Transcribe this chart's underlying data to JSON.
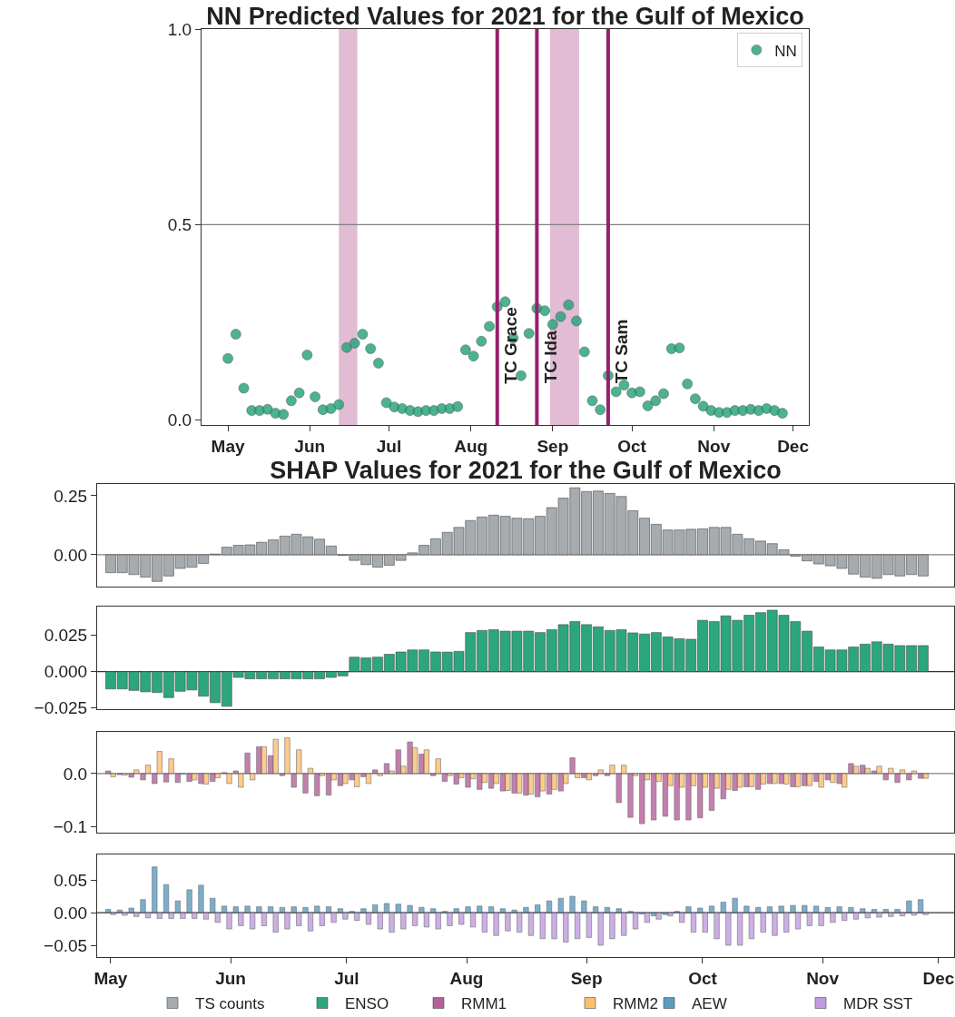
{
  "chart_data": [
    {
      "type": "scatter",
      "title": "NN Predicted Values for 2021 for the Gulf of Mexico",
      "marker": "circle",
      "legend": "top right",
      "x": [
        "2021-05-01",
        "2021-05-04",
        "2021-05-07",
        "2021-05-10",
        "2021-05-13",
        "2021-05-16",
        "2021-05-19",
        "2021-05-22",
        "2021-05-25",
        "2021-05-28",
        "2021-05-31",
        "2021-06-03",
        "2021-06-06",
        "2021-06-09",
        "2021-06-12",
        "2021-06-15",
        "2021-06-18",
        "2021-06-21",
        "2021-06-24",
        "2021-06-27",
        "2021-06-30",
        "2021-07-03",
        "2021-07-06",
        "2021-07-09",
        "2021-07-12",
        "2021-07-15",
        "2021-07-18",
        "2021-07-21",
        "2021-07-24",
        "2021-07-27",
        "2021-07-30",
        "2021-08-02",
        "2021-08-05",
        "2021-08-08",
        "2021-08-11",
        "2021-08-14",
        "2021-08-17",
        "2021-08-20",
        "2021-08-23",
        "2021-08-26",
        "2021-08-29",
        "2021-09-01",
        "2021-09-04",
        "2021-09-07",
        "2021-09-10",
        "2021-09-13",
        "2021-09-16",
        "2021-09-19",
        "2021-09-22",
        "2021-09-25",
        "2021-09-28",
        "2021-10-01",
        "2021-10-04",
        "2021-10-07",
        "2021-10-10",
        "2021-10-13",
        "2021-10-16",
        "2021-10-19",
        "2021-10-22",
        "2021-10-25",
        "2021-10-28",
        "2021-10-31",
        "2021-11-03",
        "2021-11-06",
        "2021-11-09",
        "2021-11-12",
        "2021-11-15",
        "2021-11-18",
        "2021-11-21",
        "2021-11-24",
        "2021-11-27"
      ],
      "series": [
        {
          "name": "NN",
          "color": "#2ca67e",
          "values": [
            0.158,
            0.22,
            0.082,
            0.025,
            0.025,
            0.028,
            0.018,
            0.015,
            0.05,
            0.07,
            0.167,
            0.06,
            0.027,
            0.03,
            0.04,
            0.186,
            0.197,
            0.22,
            0.183,
            0.146,
            0.045,
            0.034,
            0.03,
            0.025,
            0.022,
            0.025,
            0.025,
            0.03,
            0.03,
            0.035,
            0.18,
            0.164,
            0.202,
            0.24,
            0.29,
            0.303,
            0.21,
            0.114,
            0.222,
            0.286,
            0.28,
            0.245,
            0.265,
            0.295,
            0.254,
            0.175,
            0.05,
            0.027,
            0.114,
            0.073,
            0.09,
            0.07,
            0.073,
            0.037,
            0.05,
            0.068,
            0.183,
            0.185,
            0.093,
            0.055,
            0.036,
            0.025,
            0.02,
            0.02,
            0.025,
            0.025,
            0.028,
            0.025,
            0.03,
            0.025,
            0.018
          ]
        }
      ],
      "xlim": [
        "2021-04-21",
        "2021-12-07"
      ],
      "xticks": [
        {
          "value": "2021-05-01",
          "label": "May"
        },
        {
          "value": "2021-06-01",
          "label": "Jun"
        },
        {
          "value": "2021-07-01",
          "label": "Jul"
        },
        {
          "value": "2021-08-01",
          "label": "Aug"
        },
        {
          "value": "2021-09-01",
          "label": "Sep"
        },
        {
          "value": "2021-10-01",
          "label": "Oct"
        },
        {
          "value": "2021-11-01",
          "label": "Nov"
        },
        {
          "value": "2021-12-01",
          "label": "Dec"
        }
      ],
      "ylim": [
        -0.012,
        1
      ],
      "yticks": [
        {
          "value": 0,
          "label": "0.0"
        },
        0.5,
        {
          "value": 1,
          "label": "1.0"
        }
      ],
      "ref_lines": [
        {
          "axis": "y",
          "value": 0.5,
          "color": "#808080"
        },
        {
          "axis": "x",
          "value": "2021-08-11",
          "label": "TC Grace",
          "color": "#98206e"
        },
        {
          "axis": "x",
          "value": "2021-08-26",
          "label": "TC Ida",
          "color": "#98206e"
        },
        {
          "axis": "x",
          "value": "2021-09-22",
          "label": "TC Sam",
          "color": "#98206e"
        }
      ],
      "bands": [
        {
          "axis": "x",
          "from": "2021-06-12",
          "to": "2021-06-19",
          "color": "#dcb0cc"
        },
        {
          "axis": "x",
          "from": "2021-08-31",
          "to": "2021-09-11",
          "color": "#dcb0cc"
        }
      ]
    },
    {
      "type": "bar",
      "title": "SHAP Values for 2021 for the Gulf of Mexico",
      "legend": "bottom",
      "tick_labels": "y",
      "x": [
        "2021-05-01",
        "2021-05-04",
        "2021-05-07",
        "2021-05-10",
        "2021-05-13",
        "2021-05-16",
        "2021-05-19",
        "2021-05-22",
        "2021-05-25",
        "2021-05-28",
        "2021-05-31",
        "2021-06-03",
        "2021-06-06",
        "2021-06-09",
        "2021-06-12",
        "2021-06-15",
        "2021-06-18",
        "2021-06-21",
        "2021-06-24",
        "2021-06-27",
        "2021-06-30",
        "2021-07-03",
        "2021-07-06",
        "2021-07-09",
        "2021-07-12",
        "2021-07-15",
        "2021-07-18",
        "2021-07-21",
        "2021-07-24",
        "2021-07-27",
        "2021-07-30",
        "2021-08-02",
        "2021-08-05",
        "2021-08-08",
        "2021-08-11",
        "2021-08-14",
        "2021-08-17",
        "2021-08-20",
        "2021-08-23",
        "2021-08-26",
        "2021-08-29",
        "2021-09-01",
        "2021-09-04",
        "2021-09-07",
        "2021-09-10",
        "2021-09-13",
        "2021-09-16",
        "2021-09-19",
        "2021-09-22",
        "2021-09-25",
        "2021-09-28",
        "2021-10-01",
        "2021-10-04",
        "2021-10-07",
        "2021-10-10",
        "2021-10-13",
        "2021-10-16",
        "2021-10-19",
        "2021-10-22",
        "2021-10-25",
        "2021-10-28",
        "2021-10-31",
        "2021-11-03",
        "2021-11-06",
        "2021-11-09",
        "2021-11-12",
        "2021-11-15",
        "2021-11-18",
        "2021-11-21",
        "2021-11-24",
        "2021-11-27"
      ],
      "series": [
        {
          "name": "TS counts",
          "color": "#a6abaf",
          "values": [
            -0.076,
            -0.076,
            -0.084,
            -0.095,
            -0.113,
            -0.09,
            -0.058,
            -0.053,
            -0.037,
            0.003,
            0.032,
            0.04,
            0.042,
            0.053,
            0.063,
            0.079,
            0.087,
            0.076,
            0.066,
            0.037,
            -0.003,
            -0.024,
            -0.042,
            -0.053,
            -0.045,
            -0.024,
            0.008,
            0.04,
            0.068,
            0.095,
            0.116,
            0.145,
            0.16,
            0.168,
            0.163,
            0.155,
            0.153,
            0.163,
            0.2,
            0.24,
            0.284,
            0.268,
            0.27,
            0.26,
            0.247,
            0.187,
            0.155,
            0.129,
            0.105,
            0.105,
            0.108,
            0.11,
            0.116,
            0.116,
            0.087,
            0.068,
            0.058,
            0.047,
            0.021,
            -0.006,
            -0.026,
            -0.039,
            -0.047,
            -0.058,
            -0.082,
            -0.095,
            -0.1,
            -0.084,
            -0.09,
            -0.084,
            -0.09
          ]
        }
      ],
      "xlim": [
        "2021-04-27T12:00",
        "2021-12-05"
      ],
      "ylim": [
        -0.135,
        0.3
      ],
      "yticks": [
        {
          "value": 0,
          "label": "0.00"
        },
        0.25
      ],
      "ref_lines": [
        {
          "axis": "y",
          "value": 0,
          "color": "#808080"
        }
      ]
    },
    {
      "type": "bar",
      "legend": "bottom",
      "tick_labels": "y",
      "x": [
        "2021-05-01",
        "2021-05-04",
        "2021-05-07",
        "2021-05-10",
        "2021-05-13",
        "2021-05-16",
        "2021-05-19",
        "2021-05-22",
        "2021-05-25",
        "2021-05-28",
        "2021-05-31",
        "2021-06-03",
        "2021-06-06",
        "2021-06-09",
        "2021-06-12",
        "2021-06-15",
        "2021-06-18",
        "2021-06-21",
        "2021-06-24",
        "2021-06-27",
        "2021-06-30",
        "2021-07-03",
        "2021-07-06",
        "2021-07-09",
        "2021-07-12",
        "2021-07-15",
        "2021-07-18",
        "2021-07-21",
        "2021-07-24",
        "2021-07-27",
        "2021-07-30",
        "2021-08-02",
        "2021-08-05",
        "2021-08-08",
        "2021-08-11",
        "2021-08-14",
        "2021-08-17",
        "2021-08-20",
        "2021-08-23",
        "2021-08-26",
        "2021-08-29",
        "2021-09-01",
        "2021-09-04",
        "2021-09-07",
        "2021-09-10",
        "2021-09-13",
        "2021-09-16",
        "2021-09-19",
        "2021-09-22",
        "2021-09-25",
        "2021-09-28",
        "2021-10-01",
        "2021-10-04",
        "2021-10-07",
        "2021-10-10",
        "2021-10-13",
        "2021-10-16",
        "2021-10-19",
        "2021-10-22",
        "2021-10-25",
        "2021-10-28",
        "2021-10-31",
        "2021-11-03",
        "2021-11-06",
        "2021-11-09",
        "2021-11-12",
        "2021-11-15",
        "2021-11-18",
        "2021-11-21",
        "2021-11-24",
        "2021-11-27"
      ],
      "series": [
        {
          "name": "ENSO",
          "color": "#2ca67e",
          "values": [
            -0.012,
            -0.012,
            -0.013,
            -0.014,
            -0.0145,
            -0.018,
            -0.0136,
            -0.0127,
            -0.017,
            -0.0215,
            -0.024,
            -0.004,
            -0.005,
            -0.005,
            -0.005,
            -0.005,
            -0.005,
            -0.005,
            -0.005,
            -0.004,
            -0.003,
            0.01,
            0.0095,
            0.01,
            0.012,
            0.0136,
            0.015,
            0.015,
            0.0136,
            0.0135,
            0.014,
            0.027,
            0.0285,
            0.029,
            0.028,
            0.028,
            0.028,
            0.027,
            0.029,
            0.0325,
            0.0346,
            0.0325,
            0.031,
            0.0285,
            0.029,
            0.0268,
            0.026,
            0.027,
            0.024,
            0.0228,
            0.0224,
            0.0355,
            0.0346,
            0.0386,
            0.0355,
            0.039,
            0.0408,
            0.0425,
            0.039,
            0.0346,
            0.028,
            0.017,
            0.015,
            0.015,
            0.017,
            0.019,
            0.0206,
            0.019,
            0.018,
            0.018,
            0.018
          ]
        }
      ],
      "xlim": [
        "2021-04-27T12:00",
        "2021-12-05"
      ],
      "ylim": [
        -0.026,
        0.045
      ],
      "yticks": [
        {
          "value": -0.025,
          "label": "−0.025"
        },
        {
          "value": 0,
          "label": "0.000"
        },
        0.025
      ],
      "ref_lines": [
        {
          "axis": "y",
          "value": 0,
          "color": "#333333"
        }
      ]
    },
    {
      "type": "bar",
      "legend": "bottom",
      "tick_labels": "y",
      "x": [
        "2021-05-01",
        "2021-05-04",
        "2021-05-07",
        "2021-05-10",
        "2021-05-13",
        "2021-05-16",
        "2021-05-19",
        "2021-05-22",
        "2021-05-25",
        "2021-05-28",
        "2021-05-31",
        "2021-06-03",
        "2021-06-06",
        "2021-06-09",
        "2021-06-12",
        "2021-06-15",
        "2021-06-18",
        "2021-06-21",
        "2021-06-24",
        "2021-06-27",
        "2021-06-30",
        "2021-07-03",
        "2021-07-06",
        "2021-07-09",
        "2021-07-12",
        "2021-07-15",
        "2021-07-18",
        "2021-07-21",
        "2021-07-24",
        "2021-07-27",
        "2021-07-30",
        "2021-08-02",
        "2021-08-05",
        "2021-08-08",
        "2021-08-11",
        "2021-08-14",
        "2021-08-17",
        "2021-08-20",
        "2021-08-23",
        "2021-08-26",
        "2021-08-29",
        "2021-09-01",
        "2021-09-04",
        "2021-09-07",
        "2021-09-10",
        "2021-09-13",
        "2021-09-16",
        "2021-09-19",
        "2021-09-22",
        "2021-09-25",
        "2021-09-28",
        "2021-10-01",
        "2021-10-04",
        "2021-10-07",
        "2021-10-10",
        "2021-10-13",
        "2021-10-16",
        "2021-10-19",
        "2021-10-22",
        "2021-10-25",
        "2021-10-28",
        "2021-10-31",
        "2021-11-03",
        "2021-11-06",
        "2021-11-09",
        "2021-11-12",
        "2021-11-15",
        "2021-11-18",
        "2021-11-21",
        "2021-11-24",
        "2021-11-27"
      ],
      "series": [
        {
          "name": "RMM1",
          "color": "#b5609a",
          "values": [
            0.005,
            -0.002,
            -0.007,
            -0.012,
            -0.019,
            -0.016,
            -0.017,
            -0.015,
            -0.019,
            -0.015,
            0.002,
            0.005,
            0.039,
            0.051,
            0.034,
            -0.004,
            -0.026,
            -0.037,
            -0.042,
            -0.041,
            -0.023,
            -0.012,
            -0.006,
            0.007,
            0.019,
            0.045,
            0.06,
            0.037,
            -0.004,
            -0.015,
            -0.02,
            -0.026,
            -0.03,
            -0.028,
            -0.033,
            -0.037,
            -0.041,
            -0.044,
            -0.039,
            -0.033,
            0.03,
            -0.008,
            -0.004,
            -0.004,
            -0.055,
            -0.083,
            -0.095,
            -0.088,
            -0.081,
            -0.088,
            -0.088,
            -0.084,
            -0.07,
            -0.048,
            -0.032,
            -0.025,
            -0.03,
            -0.019,
            -0.019,
            -0.025,
            -0.023,
            -0.015,
            -0.012,
            -0.019,
            0.019,
            0.016,
            0.005,
            -0.012,
            -0.017,
            -0.012,
            -0.009
          ]
        },
        {
          "name": "RMM2",
          "color": "#fdbf6f",
          "values": [
            -0.006,
            -0.003,
            0.007,
            0.016,
            0.042,
            0.028,
            -0.001,
            -0.012,
            -0.02,
            -0.008,
            -0.019,
            -0.026,
            -0.012,
            0.051,
            0.065,
            0.068,
            0.045,
            0.01,
            -0.004,
            -0.012,
            -0.019,
            -0.025,
            -0.019,
            -0.004,
            0.005,
            0.014,
            0.049,
            0.045,
            0.028,
            -0.004,
            -0.008,
            -0.01,
            -0.017,
            -0.019,
            -0.032,
            -0.037,
            -0.039,
            -0.033,
            -0.03,
            -0.019,
            -0.008,
            -0.012,
            0.007,
            0.016,
            0.016,
            -0.004,
            -0.012,
            -0.015,
            -0.023,
            -0.026,
            -0.023,
            -0.026,
            -0.028,
            -0.03,
            -0.026,
            -0.025,
            -0.02,
            -0.019,
            -0.02,
            -0.025,
            -0.023,
            -0.026,
            -0.017,
            -0.026,
            0.014,
            0.01,
            0.014,
            0.01,
            0.007,
            0.005,
            -0.009
          ]
        }
      ],
      "xlim": [
        "2021-04-27T12:00",
        "2021-12-05"
      ],
      "ylim": [
        -0.112,
        0.079
      ],
      "yticks": [
        {
          "value": -0.1,
          "label": "−0.1"
        },
        {
          "value": 0,
          "label": "0.0"
        }
      ],
      "ref_lines": [
        {
          "axis": "y",
          "value": 0,
          "color": "#808080"
        }
      ]
    },
    {
      "type": "bar",
      "legend": "bottom",
      "x": [
        "2021-05-01",
        "2021-05-04",
        "2021-05-07",
        "2021-05-10",
        "2021-05-13",
        "2021-05-16",
        "2021-05-19",
        "2021-05-22",
        "2021-05-25",
        "2021-05-28",
        "2021-05-31",
        "2021-06-03",
        "2021-06-06",
        "2021-06-09",
        "2021-06-12",
        "2021-06-15",
        "2021-06-18",
        "2021-06-21",
        "2021-06-24",
        "2021-06-27",
        "2021-06-30",
        "2021-07-03",
        "2021-07-06",
        "2021-07-09",
        "2021-07-12",
        "2021-07-15",
        "2021-07-18",
        "2021-07-21",
        "2021-07-24",
        "2021-07-27",
        "2021-07-30",
        "2021-08-02",
        "2021-08-05",
        "2021-08-08",
        "2021-08-11",
        "2021-08-14",
        "2021-08-17",
        "2021-08-20",
        "2021-08-23",
        "2021-08-26",
        "2021-08-29",
        "2021-09-01",
        "2021-09-04",
        "2021-09-07",
        "2021-09-10",
        "2021-09-13",
        "2021-09-16",
        "2021-09-19",
        "2021-09-22",
        "2021-09-25",
        "2021-09-28",
        "2021-10-01",
        "2021-10-04",
        "2021-10-07",
        "2021-10-10",
        "2021-10-13",
        "2021-10-16",
        "2021-10-19",
        "2021-10-22",
        "2021-10-25",
        "2021-10-28",
        "2021-10-31",
        "2021-11-03",
        "2021-11-06",
        "2021-11-09",
        "2021-11-12",
        "2021-11-15",
        "2021-11-18",
        "2021-11-21",
        "2021-11-24",
        "2021-11-27"
      ],
      "series": [
        {
          "name": "AEW",
          "color": "#5b9bc0",
          "values": [
            0.005,
            0.004,
            0.007,
            0.02,
            0.07,
            0.043,
            0.018,
            0.035,
            0.042,
            0.022,
            0.01,
            0.009,
            0.01,
            0.009,
            0.009,
            0.008,
            0.009,
            0.008,
            0.01,
            0.009,
            0.006,
            0.002,
            0.006,
            0.012,
            0.014,
            0.013,
            0.011,
            0.008,
            0.006,
            0.002,
            0.006,
            0.009,
            0.01,
            0.009,
            0.006,
            0.004,
            0.008,
            0.012,
            0.018,
            0.022,
            0.025,
            0.018,
            0.009,
            0.008,
            0.006,
            0.002,
            -0.002,
            -0.005,
            -0.003,
            0.002,
            0.009,
            0.007,
            0.01,
            0.016,
            0.022,
            0.01,
            0.008,
            0.009,
            0.01,
            0.011,
            0.011,
            0.01,
            0.008,
            0.009,
            0.008,
            0.006,
            0.005,
            0.005,
            0.005,
            0.018,
            0.02
          ]
        },
        {
          "name": "MDR SST",
          "color": "#bf9ce0",
          "values": [
            -0.003,
            -0.004,
            -0.006,
            -0.008,
            -0.009,
            -0.009,
            -0.009,
            -0.009,
            -0.01,
            -0.015,
            -0.025,
            -0.02,
            -0.025,
            -0.02,
            -0.03,
            -0.025,
            -0.02,
            -0.028,
            -0.02,
            -0.015,
            -0.01,
            -0.012,
            -0.018,
            -0.025,
            -0.03,
            -0.025,
            -0.02,
            -0.022,
            -0.025,
            -0.02,
            -0.018,
            -0.022,
            -0.03,
            -0.035,
            -0.028,
            -0.03,
            -0.035,
            -0.04,
            -0.04,
            -0.045,
            -0.04,
            -0.038,
            -0.05,
            -0.04,
            -0.035,
            -0.025,
            -0.015,
            -0.01,
            -0.005,
            -0.015,
            -0.03,
            -0.03,
            -0.04,
            -0.05,
            -0.05,
            -0.04,
            -0.03,
            -0.035,
            -0.03,
            -0.025,
            -0.02,
            -0.02,
            -0.015,
            -0.012,
            -0.01,
            -0.008,
            -0.007,
            -0.006,
            -0.005,
            -0.004,
            -0.003
          ]
        }
      ],
      "xlim": [
        "2021-04-27T12:00",
        "2021-12-05"
      ],
      "xticks": [
        {
          "value": "2021-05-01",
          "label": "May"
        },
        {
          "value": "2021-06-01",
          "label": "Jun"
        },
        {
          "value": "2021-07-01",
          "label": "Jul"
        },
        {
          "value": "2021-08-01",
          "label": "Aug"
        },
        {
          "value": "2021-09-01",
          "label": "Sep"
        },
        {
          "value": "2021-10-01",
          "label": "Oct"
        },
        {
          "value": "2021-11-01",
          "label": "Nov"
        },
        {
          "value": "2021-12-01",
          "label": "Dec"
        }
      ],
      "ylim": [
        -0.068,
        0.089
      ],
      "yticks": [
        {
          "value": -0.05,
          "label": "−0.05"
        },
        {
          "value": 0,
          "label": "0.00"
        },
        0.05
      ],
      "ref_lines": [
        {
          "axis": "y",
          "value": 0,
          "color": "#333333"
        }
      ]
    }
  ]
}
